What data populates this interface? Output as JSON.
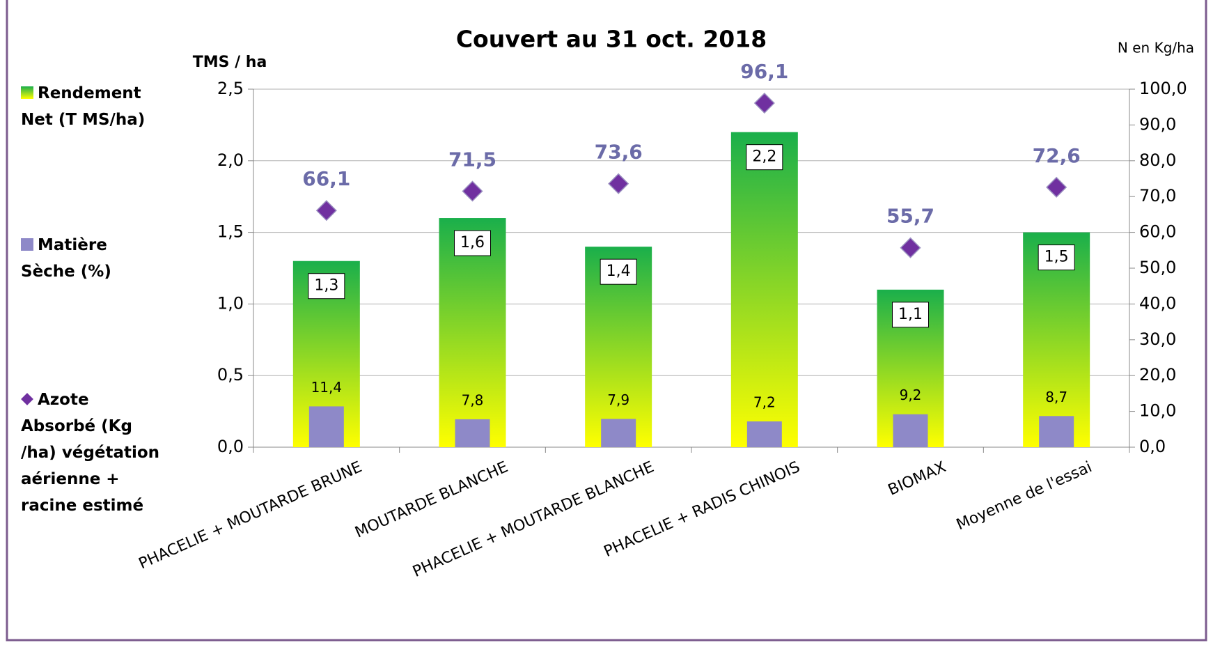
{
  "chart_data": {
    "type": "bar",
    "title": "Couvert  au 31 oct. 2018",
    "y_label": "TMS / ha",
    "y2_label": "N en Kg/ha",
    "categories": [
      "PHACELIE + MOUTARDE BRUNE",
      "MOUTARDE BLANCHE",
      "PHACELIE + MOUTARDE BLANCHE",
      "PHACELIE + RADIS CHINOIS",
      "BIOMAX",
      "Moyenne de l'essai"
    ],
    "series": [
      {
        "name": "Rendement Net (T MS/ha)",
        "type": "bar",
        "color": "#1aaf4b",
        "gradient": [
          "#ffff00",
          "#1aaf4b"
        ],
        "values": [
          1.3,
          1.6,
          1.4,
          2.2,
          1.1,
          1.5
        ],
        "value_labels": [
          "1,3",
          "1,6",
          "1,4",
          "2,2",
          "1,1",
          "1,5"
        ]
      },
      {
        "name": "Matière Sèche (%)",
        "type": "bar",
        "axis": "y2",
        "color": "#8e89c8",
        "values": [
          11.4,
          7.8,
          7.9,
          7.2,
          9.2,
          8.7
        ],
        "value_labels": [
          "11,4",
          "7,8",
          "7,9",
          "7,2",
          "9,2",
          "8,7"
        ]
      },
      {
        "name": "Azote Absorbé (Kg /ha) végétation aérienne + racine estimé",
        "type": "scatter",
        "axis": "y2",
        "color": "#7030a0",
        "label_color": "#6b6ba8",
        "values": [
          66.1,
          71.5,
          73.6,
          96.1,
          55.7,
          72.6
        ],
        "value_labels": [
          "66,1",
          "71,5",
          "73,6",
          "96,1",
          "55,7",
          "72,6"
        ]
      }
    ],
    "ylim": [
      0,
      2.5
    ],
    "yticks": [
      {
        "value": 0,
        "label": "0,0"
      },
      {
        "value": 0.5,
        "label": "0,5"
      },
      {
        "value": 1,
        "label": "1,0"
      },
      {
        "value": 1.5,
        "label": "1,5"
      },
      {
        "value": 2,
        "label": "2,0"
      },
      {
        "value": 2.5,
        "label": "2,5"
      }
    ],
    "y2lim": [
      0,
      100
    ],
    "y2ticks": [
      {
        "value": 0,
        "label": "0,0"
      },
      {
        "value": 10,
        "label": "10,0"
      },
      {
        "value": 20,
        "label": "20,0"
      },
      {
        "value": 30,
        "label": "30,0"
      },
      {
        "value": 40,
        "label": "40,0"
      },
      {
        "value": 50,
        "label": "50,0"
      },
      {
        "value": 60,
        "label": "60,0"
      },
      {
        "value": 70,
        "label": "70,0"
      },
      {
        "value": 80,
        "label": "80,0"
      },
      {
        "value": 90,
        "label": "90,0"
      },
      {
        "value": 100,
        "label": "100,0"
      }
    ],
    "grid": true,
    "legend": "left"
  }
}
